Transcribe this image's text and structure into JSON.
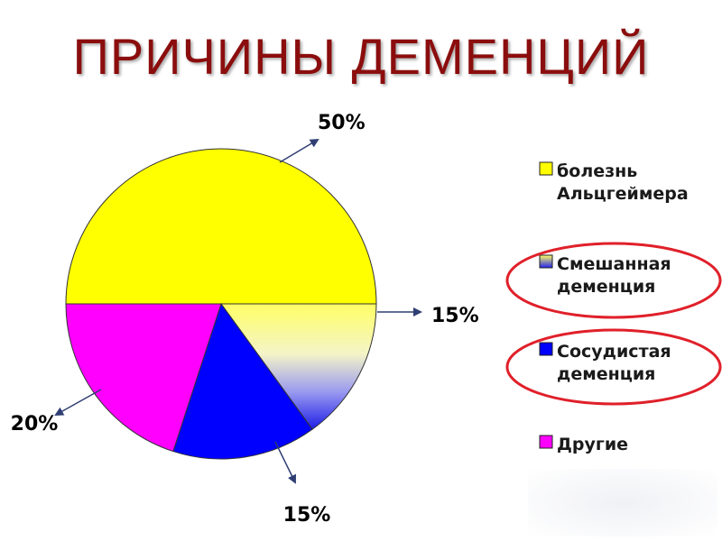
{
  "title": "ПРИЧИНЫ ДЕМЕНЦИЙ",
  "chart_data": {
    "type": "pie",
    "title": "ПРИЧИНЫ ДЕМЕНЦИЙ",
    "slices": [
      {
        "name": "болезнь Альцгеймера",
        "legend_lines": [
          "болезнь",
          "Альцгеймера"
        ],
        "value": 50,
        "label": "50%",
        "color": "#ffff00",
        "highlighted": false
      },
      {
        "name": "Смешанная деменция",
        "legend_lines": [
          "Смешанная",
          "деменция"
        ],
        "value": 15,
        "label": "15%",
        "color": "gradient:#ffff00-#3a3aff",
        "highlighted": true
      },
      {
        "name": "Сосудистая деменция",
        "legend_lines": [
          "Сосудистая",
          "деменция"
        ],
        "value": 15,
        "label": "15%",
        "color": "#0000ff",
        "highlighted": true
      },
      {
        "name": "Другие",
        "legend_lines": [
          "Другие"
        ],
        "value": 20,
        "label": "20%",
        "color": "#ff00ff",
        "highlighted": false
      }
    ],
    "legend_position": "right",
    "highlight_color": "#e0202a"
  }
}
